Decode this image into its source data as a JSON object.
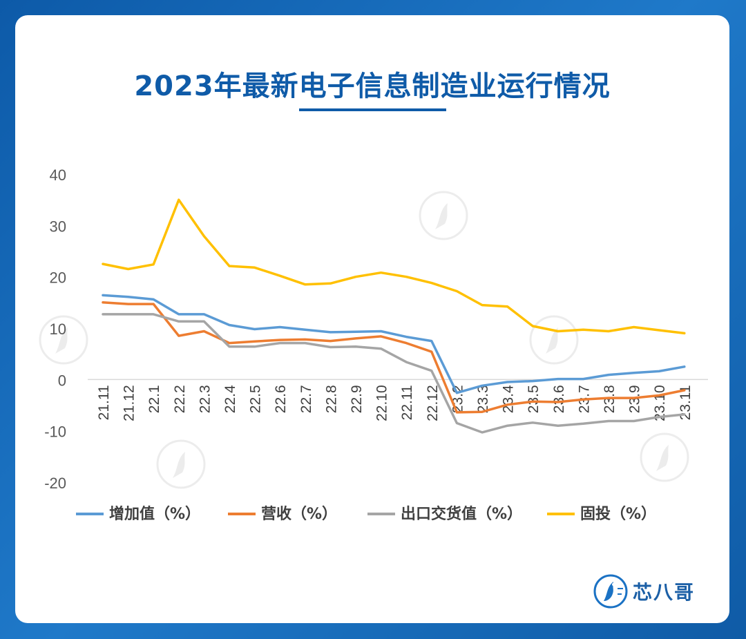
{
  "title": "2023年最新电子信息制造业运行情况",
  "brand": {
    "name": "芯八哥",
    "logo_icon": "bird-circle-logo-icon"
  },
  "colors": {
    "background": "#1467b8",
    "title": "#0f5ba8"
  },
  "chart_data": {
    "type": "line",
    "title": "2023年最新电子信息制造业运行情况",
    "xlabel": "",
    "ylabel": "",
    "ylim": [
      -20,
      40
    ],
    "yticks": [
      40,
      30,
      20,
      10,
      0,
      -10,
      -20
    ],
    "grid": false,
    "legend_position": "bottom",
    "x": [
      "21.11",
      "21.12",
      "22.1",
      "22.2",
      "22.3",
      "22.4",
      "22.5",
      "22.6",
      "22.7",
      "22.8",
      "22.9",
      "22.10",
      "22.11",
      "22.12",
      "23.2",
      "23.3",
      "23.4",
      "23.5",
      "23.6",
      "23.7",
      "23.8",
      "23.9",
      "23.10",
      "23.11"
    ],
    "series": [
      {
        "name": "增加值（%）",
        "color": "#5b9bd5",
        "values": [
          16.4,
          16.1,
          15.6,
          12.7,
          12.7,
          10.6,
          9.8,
          10.2,
          9.7,
          9.2,
          9.3,
          9.4,
          8.3,
          7.5,
          -2.6,
          -1.2,
          -0.5,
          -0.3,
          0.1,
          0.1,
          0.9,
          1.3,
          1.6,
          2.5
        ]
      },
      {
        "name": "营收（%）",
        "color": "#ed7d31",
        "values": [
          15.0,
          14.7,
          14.7,
          8.5,
          9.4,
          7.1,
          7.4,
          7.7,
          7.8,
          7.5,
          8.0,
          8.4,
          7.1,
          5.4,
          -6.4,
          -6.3,
          -4.9,
          -4.3,
          -4.4,
          -3.9,
          -3.6,
          -3.6,
          -3.1,
          -2.1
        ]
      },
      {
        "name": "出口交货值（%）",
        "color": "#a5a5a5",
        "values": [
          12.7,
          12.7,
          12.7,
          11.3,
          11.3,
          6.4,
          6.4,
          7.1,
          7.1,
          6.3,
          6.4,
          6.0,
          3.4,
          1.7,
          -8.5,
          -10.3,
          -9.0,
          -8.4,
          -9.0,
          -8.6,
          -8.1,
          -8.1,
          -7.3,
          -6.8
        ]
      },
      {
        "name": "固投（%）",
        "color": "#ffc000",
        "values": [
          22.5,
          21.5,
          22.4,
          35.0,
          27.9,
          22.1,
          21.8,
          20.2,
          18.5,
          18.7,
          20.0,
          20.8,
          20.0,
          18.8,
          17.2,
          14.5,
          14.2,
          10.4,
          9.4,
          9.7,
          9.4,
          10.2,
          9.6,
          9.0
        ]
      }
    ]
  }
}
